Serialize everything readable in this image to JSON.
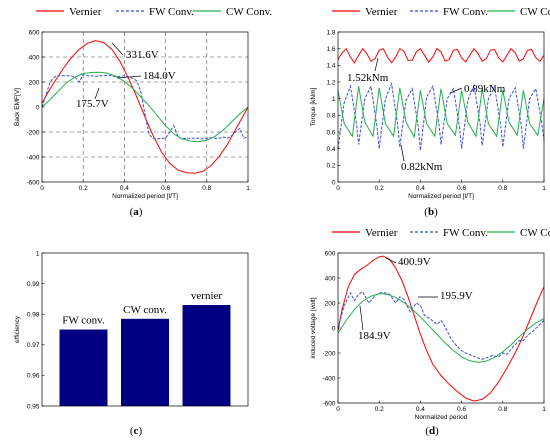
{
  "chart_data": [
    {
      "panel": "(a)",
      "type": "line",
      "xlabel": "Normalized period [t/T]",
      "ylabel": "Back EMF[V]",
      "xlim": [
        0,
        1
      ],
      "ylim": [
        -600,
        600
      ],
      "xticks": [
        0,
        0.2,
        0.4,
        0.6,
        0.8,
        1
      ],
      "yticks": [
        -600,
        -400,
        -200,
        0,
        200,
        400,
        600
      ],
      "xtick_labels": [
        "0",
        "0.2",
        "0.4",
        "0.6",
        "0.8",
        "1"
      ],
      "ytick_labels": [
        "-600",
        "-400",
        "-200",
        "0",
        "200",
        "400",
        "600"
      ],
      "grid": "dashed guide lines",
      "legend": {
        "placement": "top",
        "entries": [
          "Vernier",
          "FW Conv.",
          "CW Conv."
        ]
      },
      "series": [
        {
          "name": "Vernier",
          "color": "#ff0000",
          "style": "solid",
          "x": [
            0,
            0.03,
            0.06,
            0.1,
            0.14,
            0.18,
            0.22,
            0.26,
            0.3,
            0.34,
            0.38,
            0.42,
            0.46,
            0.5,
            0.54,
            0.58,
            0.62,
            0.66,
            0.7,
            0.74,
            0.78,
            0.82,
            0.86,
            0.9,
            0.94,
            0.98,
            1
          ],
          "y": [
            30,
            120,
            200,
            300,
            390,
            460,
            510,
            531,
            515,
            460,
            360,
            230,
            80,
            -80,
            -230,
            -360,
            -450,
            -505,
            -525,
            -530,
            -515,
            -470,
            -395,
            -300,
            -180,
            -60,
            0
          ]
        },
        {
          "name": "FW Conv.",
          "color": "#3b4fd4",
          "style": "dashed",
          "x": [
            0,
            0.02,
            0.04,
            0.06,
            0.08,
            0.1,
            0.12,
            0.14,
            0.16,
            0.18,
            0.2,
            0.22,
            0.24,
            0.26,
            0.28,
            0.3,
            0.32,
            0.34,
            0.36,
            0.38,
            0.4,
            0.42,
            0.44,
            0.46,
            0.48,
            0.5,
            0.52,
            0.54,
            0.56,
            0.58,
            0.6,
            0.62,
            0.64,
            0.66,
            0.68,
            0.7,
            0.72,
            0.74,
            0.76,
            0.78,
            0.8,
            0.82,
            0.84,
            0.86,
            0.88,
            0.9,
            0.92,
            0.94,
            0.96,
            0.98,
            1
          ],
          "y": [
            0,
            100,
            200,
            240,
            250,
            250,
            250,
            250,
            240,
            200,
            260,
            250,
            250,
            245,
            250,
            250,
            255,
            250,
            240,
            245,
            250,
            240,
            230,
            210,
            120,
            -60,
            -220,
            -250,
            -255,
            -250,
            -250,
            -200,
            -150,
            -240,
            -255,
            -250,
            -250,
            -250,
            -250,
            -255,
            -250,
            -245,
            -250,
            -250,
            -240,
            -250,
            -230,
            -200,
            -170,
            -250,
            -240
          ]
        },
        {
          "name": "CW Conv.",
          "color": "#22b14c",
          "style": "solid",
          "x": [
            0,
            0.04,
            0.08,
            0.12,
            0.16,
            0.2,
            0.24,
            0.28,
            0.32,
            0.36,
            0.4,
            0.44,
            0.48,
            0.52,
            0.56,
            0.6,
            0.64,
            0.68,
            0.72,
            0.76,
            0.8,
            0.84,
            0.88,
            0.92,
            0.96,
            1
          ],
          "y": [
            0,
            60,
            130,
            195,
            240,
            268,
            276,
            278,
            270,
            245,
            205,
            150,
            80,
            10,
            -70,
            -150,
            -215,
            -255,
            -272,
            -278,
            -265,
            -235,
            -185,
            -120,
            -55,
            0
          ]
        }
      ],
      "annotations": [
        "331.6V",
        "184.0V",
        "175.7V"
      ]
    },
    {
      "panel": "(b)",
      "type": "line",
      "xlabel": "Normalized period [t/T]",
      "ylabel": "Torque [kNm]",
      "xlim": [
        0,
        1
      ],
      "ylim": [
        0,
        1.8
      ],
      "xticks": [
        0,
        0.2,
        0.4,
        0.6,
        0.8,
        1
      ],
      "yticks": [
        0,
        0.2,
        0.4,
        0.6,
        0.8,
        1,
        1.2,
        1.4,
        1.6,
        1.8
      ],
      "xtick_labels": [
        "0",
        "0.2",
        "0.4",
        "0.6",
        "0.8",
        "1"
      ],
      "ytick_labels": [
        "0",
        "0.2",
        "0.4",
        "0.6",
        "0.8",
        "1",
        "1.2",
        "1.4",
        "1.6",
        "1.8"
      ],
      "legend": {
        "placement": "top",
        "entries": [
          "Vernier",
          "FW Conv.",
          "CW Conv."
        ]
      },
      "series": [
        {
          "name": "Vernier",
          "color": "#ff0000",
          "style": "solid",
          "x": [
            0,
            0.02,
            0.04,
            0.06,
            0.08,
            0.1,
            0.12,
            0.14,
            0.16,
            0.18,
            0.2,
            0.22,
            0.24,
            0.26,
            0.28,
            0.3,
            0.32,
            0.34,
            0.36,
            0.38,
            0.4,
            0.42,
            0.44,
            0.46,
            0.48,
            0.5,
            0.52,
            0.54,
            0.56,
            0.58,
            0.6,
            0.62,
            0.64,
            0.66,
            0.68,
            0.7,
            0.72,
            0.74,
            0.76,
            0.78,
            0.8,
            0.82,
            0.84,
            0.86,
            0.88,
            0.9,
            0.92,
            0.94,
            0.96,
            0.98,
            1
          ],
          "y": [
            1.47,
            1.55,
            1.6,
            1.5,
            1.43,
            1.52,
            1.6,
            1.54,
            1.45,
            1.48,
            1.58,
            1.6,
            1.5,
            1.43,
            1.5,
            1.6,
            1.57,
            1.46,
            1.46,
            1.56,
            1.6,
            1.52,
            1.44,
            1.5,
            1.6,
            1.56,
            1.45,
            1.47,
            1.58,
            1.59,
            1.49,
            1.44,
            1.52,
            1.6,
            1.54,
            1.45,
            1.48,
            1.58,
            1.59,
            1.49,
            1.44,
            1.52,
            1.6,
            1.55,
            1.45,
            1.48,
            1.58,
            1.59,
            1.49,
            1.45,
            1.52
          ]
        },
        {
          "name": "FW Conv.",
          "color": "#3b4fd4",
          "style": "dashed",
          "x": [
            0,
            0.03,
            0.06,
            0.09,
            0.1,
            0.13,
            0.16,
            0.19,
            0.2,
            0.23,
            0.26,
            0.29,
            0.3,
            0.33,
            0.36,
            0.39,
            0.4,
            0.43,
            0.46,
            0.49,
            0.5,
            0.53,
            0.56,
            0.59,
            0.6,
            0.63,
            0.66,
            0.69,
            0.7,
            0.73,
            0.76,
            0.79,
            0.8,
            0.83,
            0.86,
            0.89,
            0.9,
            0.93,
            0.96,
            0.99,
            1
          ],
          "y": [
            0.4,
            0.95,
            1.15,
            0.7,
            0.45,
            1.0,
            1.15,
            0.65,
            0.4,
            1.0,
            1.18,
            0.68,
            0.42,
            0.98,
            1.12,
            0.66,
            0.38,
            1.02,
            1.15,
            0.7,
            0.45,
            1.0,
            1.12,
            0.66,
            0.4,
            0.98,
            1.16,
            0.7,
            0.44,
            1.0,
            1.14,
            0.68,
            0.42,
            1.0,
            1.13,
            0.68,
            0.4,
            1.0,
            1.12,
            0.7,
            0.5
          ]
        },
        {
          "name": "CW Conv.",
          "color": "#22b14c",
          "style": "solid",
          "x": [
            0,
            0.03,
            0.07,
            0.1,
            0.13,
            0.17,
            0.2,
            0.23,
            0.27,
            0.3,
            0.33,
            0.37,
            0.4,
            0.43,
            0.47,
            0.5,
            0.53,
            0.57,
            0.6,
            0.63,
            0.67,
            0.7,
            0.73,
            0.77,
            0.8,
            0.83,
            0.87,
            0.9,
            0.93,
            0.97,
            1
          ],
          "y": [
            1.1,
            0.7,
            0.55,
            1.15,
            0.72,
            0.55,
            1.13,
            0.7,
            0.55,
            1.13,
            0.72,
            0.54,
            1.1,
            0.7,
            0.55,
            1.12,
            0.7,
            0.56,
            1.1,
            0.72,
            0.55,
            1.12,
            0.7,
            0.55,
            1.1,
            0.72,
            0.56,
            1.1,
            0.7,
            0.56,
            1.0
          ]
        }
      ],
      "annotations": [
        "1.52kNm",
        "0.89kNm",
        "0.82kNm"
      ]
    },
    {
      "panel": "(c)",
      "type": "bar",
      "ylabel": "efficiency",
      "categories": [
        "FW conv.",
        "CW conv.",
        "vernier"
      ],
      "values": [
        0.975,
        0.9785,
        0.983
      ],
      "ylim": [
        0.95,
        1
      ],
      "yticks": [
        0.95,
        0.96,
        0.97,
        0.98,
        0.99,
        1
      ],
      "ytick_labels": [
        "0.95",
        "0.96",
        "0.97",
        "0.98",
        "0.99",
        "1"
      ],
      "bar_color": "#000080"
    },
    {
      "panel": "(d)",
      "type": "line",
      "xlabel": "Normalized period",
      "ylabel": "induced voltage [volt]",
      "xlim": [
        0,
        1
      ],
      "ylim": [
        -600,
        600
      ],
      "xticks": [
        0,
        0.2,
        0.4,
        0.6,
        0.8,
        1
      ],
      "yticks": [
        -600,
        -400,
        -200,
        0,
        200,
        400,
        600
      ],
      "xtick_labels": [
        "0",
        "0.2",
        "0.4",
        "0.6",
        "0.8",
        "1"
      ],
      "ytick_labels": [
        "-600",
        "-400",
        "-200",
        "0",
        "200",
        "400",
        "600"
      ],
      "legend": {
        "placement": "top",
        "entries": [
          "Vernier",
          "FW Conv.",
          "CW Conv."
        ]
      },
      "series": [
        {
          "name": "Vernier",
          "color": "#ff0000",
          "style": "solid",
          "x": [
            0,
            0.02,
            0.05,
            0.08,
            0.11,
            0.14,
            0.17,
            0.2,
            0.22,
            0.25,
            0.28,
            0.31,
            0.34,
            0.37,
            0.4,
            0.43,
            0.46,
            0.5,
            0.54,
            0.58,
            0.62,
            0.66,
            0.7,
            0.74,
            0.78,
            0.82,
            0.86,
            0.9,
            0.94,
            0.97,
            1
          ],
          "y": [
            -20,
            150,
            330,
            430,
            470,
            500,
            540,
            570,
            575,
            550,
            480,
            380,
            250,
            100,
            -50,
            -180,
            -290,
            -380,
            -450,
            -510,
            -560,
            -585,
            -570,
            -520,
            -430,
            -320,
            -200,
            -60,
            100,
            220,
            330
          ]
        },
        {
          "name": "FW Conv.",
          "color": "#3b4fd4",
          "style": "dashed",
          "x": [
            0,
            0.03,
            0.06,
            0.08,
            0.1,
            0.12,
            0.15,
            0.18,
            0.2,
            0.22,
            0.25,
            0.28,
            0.3,
            0.32,
            0.35,
            0.38,
            0.4,
            0.42,
            0.45,
            0.48,
            0.5,
            0.52,
            0.55,
            0.58,
            0.6,
            0.62,
            0.65,
            0.68,
            0.7,
            0.72,
            0.75,
            0.78,
            0.8,
            0.82,
            0.85,
            0.88,
            0.9,
            0.92,
            0.95,
            0.98,
            1
          ],
          "y": [
            0,
            180,
            280,
            220,
            270,
            290,
            200,
            260,
            280,
            285,
            270,
            200,
            250,
            230,
            130,
            200,
            180,
            100,
            70,
            30,
            60,
            10,
            -90,
            -150,
            -180,
            -200,
            -220,
            -240,
            -250,
            -240,
            -220,
            -230,
            -200,
            -210,
            -150,
            -100,
            -100,
            -60,
            -20,
            30,
            60
          ]
        },
        {
          "name": "CW Conv.",
          "color": "#22b14c",
          "style": "solid",
          "x": [
            0,
            0.04,
            0.08,
            0.12,
            0.16,
            0.2,
            0.24,
            0.28,
            0.32,
            0.36,
            0.4,
            0.44,
            0.48,
            0.52,
            0.56,
            0.6,
            0.64,
            0.68,
            0.72,
            0.76,
            0.8,
            0.84,
            0.88,
            0.92,
            0.96,
            1
          ],
          "y": [
            -40,
            60,
            150,
            215,
            255,
            275,
            270,
            245,
            205,
            150,
            90,
            20,
            -50,
            -120,
            -180,
            -230,
            -262,
            -275,
            -265,
            -235,
            -190,
            -135,
            -70,
            -10,
            40,
            75
          ]
        }
      ],
      "annotations": [
        "400.9V",
        "195.9V",
        "184.9V"
      ]
    }
  ]
}
